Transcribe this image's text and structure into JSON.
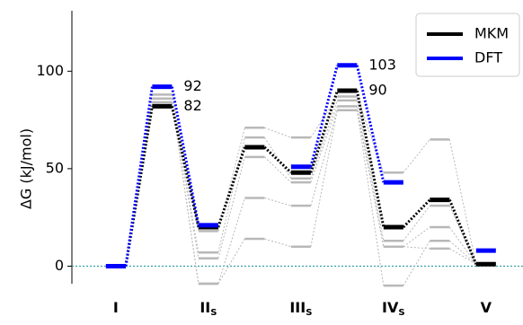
{
  "chart_data": {
    "type": "energy_diagram",
    "ylabel": "ΔG (kJ/mol)",
    "x": [
      0,
      1,
      2,
      3,
      4,
      5,
      6,
      7,
      8
    ],
    "xlim": [
      -0.95,
      8.8
    ],
    "x_labels": [
      {
        "x": 0,
        "text": "I"
      },
      {
        "x": 2,
        "text": "II",
        "sub": "S"
      },
      {
        "x": 4,
        "text": "III",
        "sub": "S"
      },
      {
        "x": 6,
        "text": "IV",
        "sub": "S"
      },
      {
        "x": 8,
        "text": "V"
      }
    ],
    "ylim": [
      -9,
      131
    ],
    "yticks": [
      0,
      50,
      100
    ],
    "zero_line_color": "#2a9d9d",
    "legend": "upper right",
    "gray_color": "#b8b8b8",
    "gray_series": [
      {
        "values": [
          0,
          88,
          18,
          71,
          66,
          87,
          48,
          65,
          1
        ]
      },
      {
        "values": [
          0,
          86,
          7,
          66,
          45,
          85,
          13,
          31,
          1
        ]
      },
      {
        "values": [
          0,
          84,
          4,
          56,
          43,
          82,
          10,
          20,
          1
        ]
      },
      {
        "values": [
          0,
          84,
          -9,
          35,
          31,
          80,
          -10,
          13,
          1
        ]
      },
      {
        "values": [
          0,
          84,
          -9,
          14,
          10,
          80,
          10,
          9,
          1
        ]
      }
    ],
    "series": [
      {
        "name": "MKM",
        "color": "#000000",
        "values": [
          0,
          82,
          20,
          61,
          48,
          90,
          20,
          34,
          1
        ]
      },
      {
        "name": "DFT",
        "color": "#0000ff",
        "values": [
          0,
          92,
          21,
          null,
          51,
          103,
          43,
          null,
          8
        ]
      }
    ],
    "labeled_points": [
      [
        1,
        1
      ],
      [
        0,
        1
      ],
      [
        1,
        5
      ],
      [
        0,
        5
      ]
    ]
  }
}
